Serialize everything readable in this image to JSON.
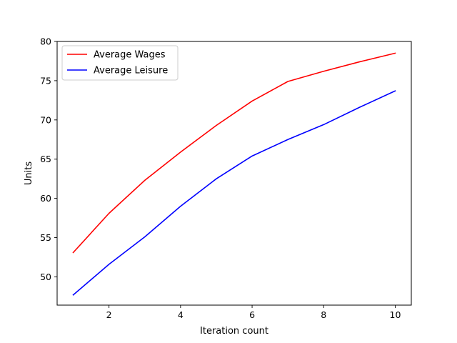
{
  "chart_data": {
    "type": "line",
    "title": "",
    "xlabel": "Iteration count",
    "ylabel": "Units",
    "xlim": [
      0.55,
      10.45
    ],
    "ylim": [
      46.4,
      80.0
    ],
    "xticks": [
      2,
      4,
      6,
      8,
      10
    ],
    "xtick_labels": [
      "2",
      "4",
      "6",
      "8",
      "10"
    ],
    "yticks": [
      50,
      55,
      60,
      65,
      70,
      75,
      80
    ],
    "ytick_labels": [
      "50",
      "55",
      "60",
      "65",
      "70",
      "75",
      "80"
    ],
    "grid": false,
    "legend_position": "top-left",
    "x": [
      1,
      2,
      3,
      4,
      5,
      6,
      7,
      8,
      9,
      10
    ],
    "series": [
      {
        "name": "Average Wages",
        "color": "#ff0000",
        "values": [
          53.1,
          58.1,
          62.3,
          65.9,
          69.3,
          72.4,
          74.9,
          76.2,
          77.4,
          78.5
        ]
      },
      {
        "name": "Average Leisure",
        "color": "#0000ff",
        "values": [
          47.7,
          51.6,
          55.1,
          59.0,
          62.5,
          65.4,
          67.5,
          69.4,
          71.6,
          73.7
        ]
      }
    ]
  }
}
